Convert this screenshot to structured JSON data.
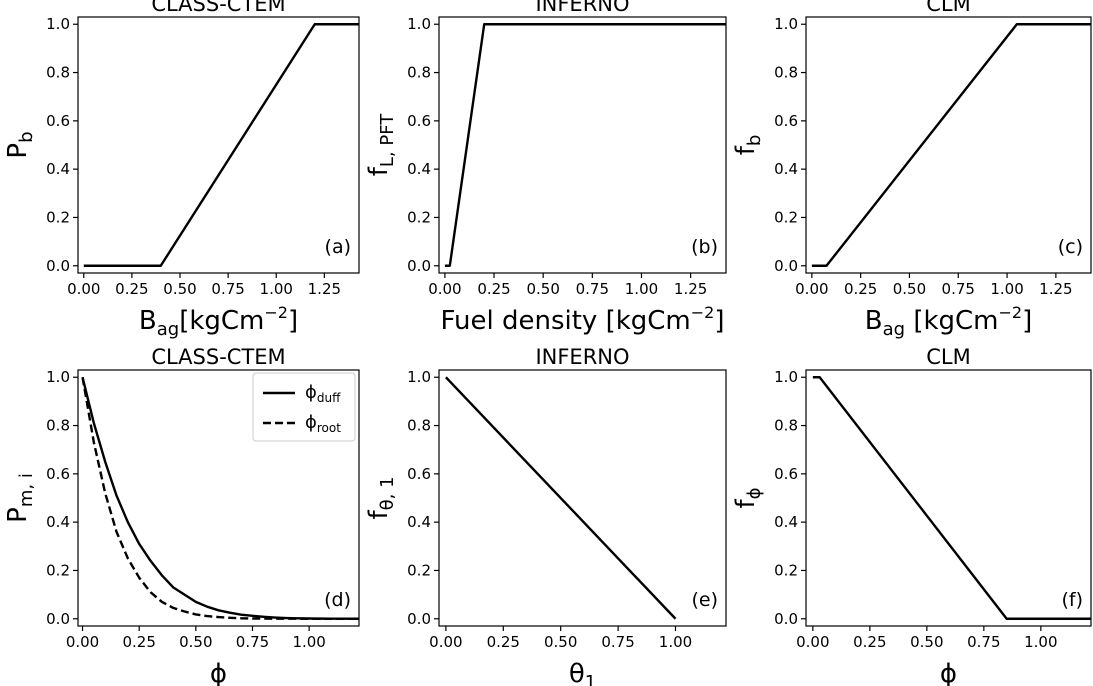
{
  "chart_data": [
    {
      "id": "a",
      "type": "line",
      "title": "CLASS-CTEM",
      "xlabel": {
        "main": "B",
        "sub": "ag",
        "gap": "",
        "unit": "[kgCm",
        "sup": "−2",
        "close": "]"
      },
      "ylabel": {
        "main": "P",
        "sub": "b"
      },
      "panel_label": "(a)",
      "xlim": [
        -0.03,
        1.43
      ],
      "ylim": [
        -0.03,
        1.03
      ],
      "xticks": [
        0.0,
        0.25,
        0.5,
        0.75,
        1.0,
        1.25
      ],
      "xtick_labels": [
        "0.00",
        "0.25",
        "0.50",
        "0.75",
        "1.00",
        "1.25"
      ],
      "yticks": [
        0.0,
        0.2,
        0.4,
        0.6,
        0.8,
        1.0
      ],
      "ytick_labels": [
        "0.0",
        "0.2",
        "0.4",
        "0.6",
        "0.8",
        "1.0"
      ],
      "series": [
        {
          "style": "solid",
          "x": [
            0.0,
            0.4,
            1.2,
            1.43
          ],
          "y": [
            0.0,
            0.0,
            1.0,
            1.0
          ]
        }
      ]
    },
    {
      "id": "b",
      "type": "line",
      "title": "INFERNO",
      "xlabel": {
        "main": "Fuel density [kgCm",
        "sup": "−2",
        "close": "]"
      },
      "ylabel": {
        "main": "f",
        "sub": "L, PFT"
      },
      "panel_label": "(b)",
      "xlim": [
        -0.03,
        1.43
      ],
      "ylim": [
        -0.03,
        1.03
      ],
      "xticks": [
        0.0,
        0.25,
        0.5,
        0.75,
        1.0,
        1.25
      ],
      "xtick_labels": [
        "0.00",
        "0.25",
        "0.50",
        "0.75",
        "1.00",
        "1.25"
      ],
      "yticks": [
        0.0,
        0.2,
        0.4,
        0.6,
        0.8,
        1.0
      ],
      "ytick_labels": [
        "0.0",
        "0.2",
        "0.4",
        "0.6",
        "0.8",
        "1.0"
      ],
      "series": [
        {
          "style": "solid",
          "x": [
            0.0,
            0.025,
            0.2,
            1.43
          ],
          "y": [
            0.0,
            0.0,
            1.0,
            1.0
          ]
        }
      ]
    },
    {
      "id": "c",
      "type": "line",
      "title": "CLM",
      "xlabel": {
        "main": "B",
        "sub": "ag",
        "gap": " ",
        "unit": "[kgCm",
        "sup": "−2",
        "close": "]"
      },
      "ylabel": {
        "main": "f",
        "sub": "b"
      },
      "panel_label": "(c)",
      "xlim": [
        -0.03,
        1.43
      ],
      "ylim": [
        -0.03,
        1.03
      ],
      "xticks": [
        0.0,
        0.25,
        0.5,
        0.75,
        1.0,
        1.25
      ],
      "xtick_labels": [
        "0.00",
        "0.25",
        "0.50",
        "0.75",
        "1.00",
        "1.25"
      ],
      "yticks": [
        0.0,
        0.2,
        0.4,
        0.6,
        0.8,
        1.0
      ],
      "ytick_labels": [
        "0.0",
        "0.2",
        "0.4",
        "0.6",
        "0.8",
        "1.0"
      ],
      "series": [
        {
          "style": "solid",
          "x": [
            0.0,
            0.075,
            1.05,
            1.43
          ],
          "y": [
            0.0,
            0.0,
            1.0,
            1.0
          ]
        }
      ]
    },
    {
      "id": "d",
      "type": "line",
      "title": "CLASS-CTEM",
      "xlabel": {
        "main": "ϕ"
      },
      "ylabel": {
        "main": "P",
        "sub": "m, i"
      },
      "panel_label": "(d)",
      "xlim": [
        -0.02,
        1.22
      ],
      "ylim": [
        -0.03,
        1.03
      ],
      "xticks": [
        0.0,
        0.25,
        0.5,
        0.75,
        1.0
      ],
      "xtick_labels": [
        "0.00",
        "0.25",
        "0.50",
        "0.75",
        "1.00"
      ],
      "yticks": [
        0.0,
        0.2,
        0.4,
        0.6,
        0.8,
        1.0
      ],
      "ytick_labels": [
        "0.0",
        "0.2",
        "0.4",
        "0.6",
        "0.8",
        "1.0"
      ],
      "legend": {
        "position": "top-right"
      },
      "series": [
        {
          "name": "ϕ",
          "name_sub": "duff",
          "style": "solid",
          "x": [
            0.0,
            0.05,
            0.1,
            0.15,
            0.2,
            0.25,
            0.3,
            0.35,
            0.4,
            0.45,
            0.5,
            0.55,
            0.6,
            0.65,
            0.7,
            0.75,
            0.8,
            0.85,
            0.9,
            0.95,
            1.0,
            1.05,
            1.1,
            1.15,
            1.22
          ],
          "y": [
            1.0,
            0.81,
            0.65,
            0.51,
            0.4,
            0.31,
            0.24,
            0.18,
            0.13,
            0.1,
            0.07,
            0.05,
            0.035,
            0.025,
            0.017,
            0.012,
            0.008,
            0.005,
            0.003,
            0.002,
            0.001,
            0.0005,
            0.0003,
            0.0001,
            0.0
          ]
        },
        {
          "name": "ϕ",
          "name_sub": "root",
          "style": "dashed",
          "x": [
            0.0,
            0.05,
            0.1,
            0.15,
            0.2,
            0.25,
            0.3,
            0.35,
            0.4,
            0.45,
            0.5,
            0.55,
            0.6,
            0.65,
            0.7,
            0.75,
            0.8,
            0.9,
            1.0,
            1.1,
            1.22
          ],
          "y": [
            1.0,
            0.73,
            0.52,
            0.36,
            0.25,
            0.17,
            0.11,
            0.07,
            0.045,
            0.03,
            0.018,
            0.011,
            0.007,
            0.004,
            0.002,
            0.001,
            0.0006,
            0.0002,
            0.0,
            0.0,
            0.0
          ]
        }
      ]
    },
    {
      "id": "e",
      "type": "line",
      "title": "INFERNO",
      "xlabel": {
        "main": "θ",
        "sub": "1"
      },
      "ylabel": {
        "main": "f",
        "sub": "θ, 1"
      },
      "panel_label": "(e)",
      "xlim": [
        -0.03,
        1.22
      ],
      "ylim": [
        -0.03,
        1.03
      ],
      "xticks": [
        0.0,
        0.25,
        0.5,
        0.75,
        1.0
      ],
      "xtick_labels": [
        "0.00",
        "0.25",
        "0.50",
        "0.75",
        "1.00"
      ],
      "yticks": [
        0.0,
        0.2,
        0.4,
        0.6,
        0.8,
        1.0
      ],
      "ytick_labels": [
        "0.0",
        "0.2",
        "0.4",
        "0.6",
        "0.8",
        "1.0"
      ],
      "series": [
        {
          "style": "solid",
          "x": [
            0.0,
            1.0
          ],
          "y": [
            1.0,
            0.0
          ]
        }
      ]
    },
    {
      "id": "f",
      "type": "line",
      "title": "CLM",
      "xlabel": {
        "main": "ϕ"
      },
      "ylabel": {
        "main": "f",
        "sub": "ϕ"
      },
      "panel_label": "(f)",
      "xlim": [
        -0.03,
        1.22
      ],
      "ylim": [
        -0.03,
        1.03
      ],
      "xticks": [
        0.0,
        0.25,
        0.5,
        0.75,
        1.0
      ],
      "xtick_labels": [
        "0.00",
        "0.25",
        "0.50",
        "0.75",
        "1.00"
      ],
      "yticks": [
        0.0,
        0.2,
        0.4,
        0.6,
        0.8,
        1.0
      ],
      "ytick_labels": [
        "0.0",
        "0.2",
        "0.4",
        "0.6",
        "0.8",
        "1.0"
      ],
      "series": [
        {
          "style": "solid",
          "x": [
            0.0,
            0.03,
            0.85,
            1.22
          ],
          "y": [
            1.0,
            1.0,
            0.0,
            0.0
          ]
        }
      ]
    }
  ]
}
